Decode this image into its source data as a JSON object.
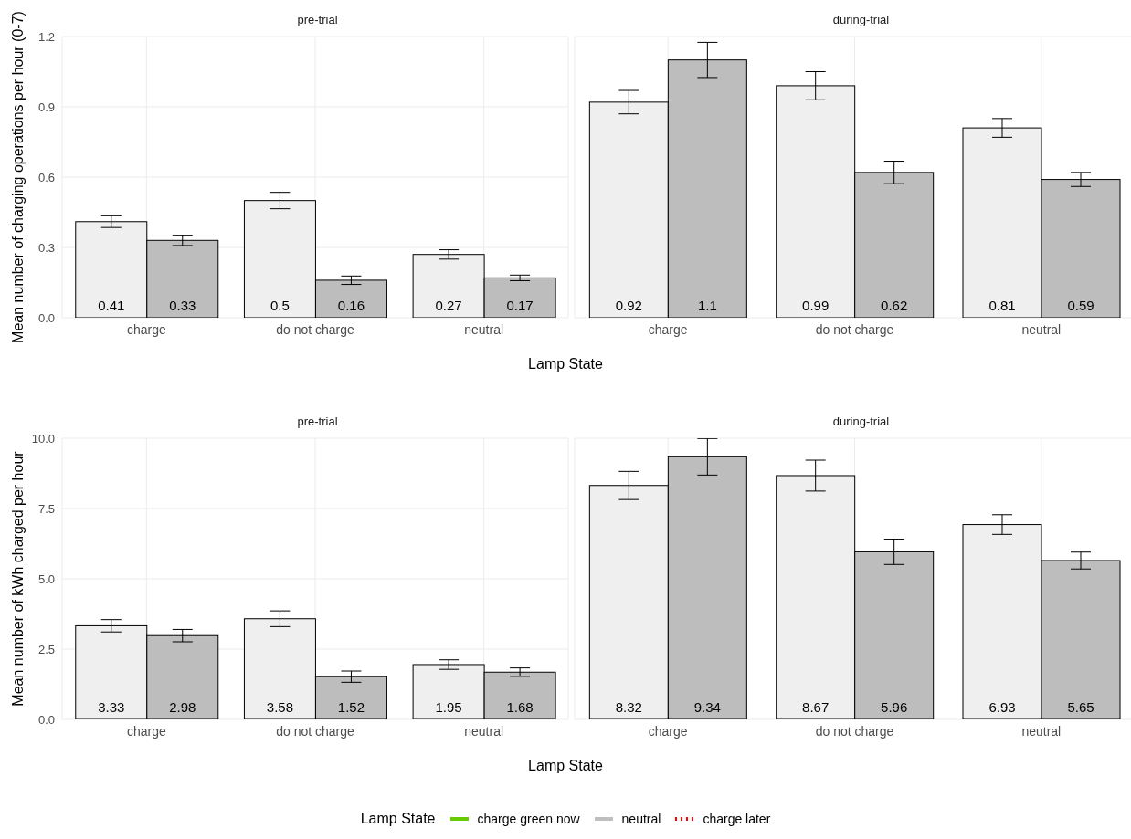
{
  "chart_data": [
    {
      "type": "bar",
      "title": "pre-trial",
      "ylabel": "Mean number of charging operations per hour (0-7)",
      "xlabel": "Lamp State",
      "yticks": [
        {
          "value": 0,
          "label": "0.0"
        },
        0.3,
        0.6,
        0.9,
        1.2
      ],
      "categories": [
        "charge",
        "do not charge",
        "neutral"
      ],
      "series": [
        {
          "color": "#efefef",
          "values": [
            0.41,
            0.5,
            0.27
          ],
          "errors": [
            0.025,
            0.035,
            0.02
          ]
        },
        {
          "color": "#bdbdbd",
          "values": [
            0.33,
            0.16,
            0.17
          ],
          "errors": [
            0.022,
            0.018,
            0.012
          ]
        }
      ],
      "ylim": [
        0,
        1.2
      ],
      "grid": true,
      "data_labels": true
    },
    {
      "type": "bar",
      "title": "during-trial",
      "categories": [
        "charge",
        "do not charge",
        "neutral"
      ],
      "series": [
        {
          "color": "#efefef",
          "values": [
            0.92,
            0.99,
            0.81
          ],
          "errors": [
            0.05,
            0.06,
            0.04
          ]
        },
        {
          "color": "#bdbdbd",
          "values": [
            1.1,
            0.62,
            0.59
          ],
          "errors": [
            0.075,
            0.048,
            0.03
          ]
        }
      ],
      "ylim": [
        0,
        1.2
      ],
      "yticks": [
        0.0,
        0.3,
        0.6,
        0.9,
        1.2
      ],
      "grid": true,
      "data_labels": true,
      "tick_labels": "x"
    },
    {
      "type": "bar",
      "title": "pre-trial",
      "ylabel": "Mean number of kWh charged per hour",
      "xlabel": "Lamp State",
      "categories": [
        "charge",
        "do not charge",
        "neutral"
      ],
      "series": [
        {
          "color": "#efefef",
          "values": [
            3.33,
            3.58,
            1.95
          ],
          "errors": [
            0.22,
            0.28,
            0.17
          ]
        },
        {
          "color": "#bdbdbd",
          "values": [
            2.98,
            1.52,
            1.68
          ],
          "errors": [
            0.22,
            0.2,
            0.15
          ]
        }
      ],
      "ylim": [
        0,
        10
      ],
      "yticks": [
        {
          "value": 0,
          "label": "0.0"
        },
        2.5,
        {
          "value": 5,
          "label": "5.0"
        },
        7.5,
        {
          "value": 10,
          "label": "10.0"
        }
      ],
      "grid": true,
      "data_labels": true
    },
    {
      "type": "bar",
      "title": "during-trial",
      "categories": [
        "charge",
        "do not charge",
        "neutral"
      ],
      "series": [
        {
          "color": "#efefef",
          "values": [
            8.32,
            8.67,
            6.93
          ],
          "errors": [
            0.5,
            0.55,
            0.35
          ]
        },
        {
          "color": "#bdbdbd",
          "values": [
            9.34,
            5.96,
            5.65
          ],
          "errors": [
            0.65,
            0.45,
            0.3
          ]
        },
        {
          "type": "line",
          "name": "charge green now",
          "color": "#66cc00",
          "line_style": "solid",
          "values": [
            null,
            null,
            null
          ]
        },
        {
          "type": "line",
          "name": "neutral",
          "color": "#bebebe",
          "line_style": "solid",
          "values": [
            null,
            null,
            null
          ]
        },
        {
          "type": "line",
          "name": "charge later",
          "color": "#ff0000",
          "line_style": "dotted",
          "values": [
            null,
            null,
            null
          ]
        }
      ],
      "ylim": [
        0,
        10
      ],
      "yticks": [
        0,
        2.5,
        5,
        7.5,
        10
      ],
      "grid": true,
      "data_labels": true,
      "tick_labels": "x",
      "legend": "bottom",
      "legend_title": "Lamp State"
    }
  ]
}
